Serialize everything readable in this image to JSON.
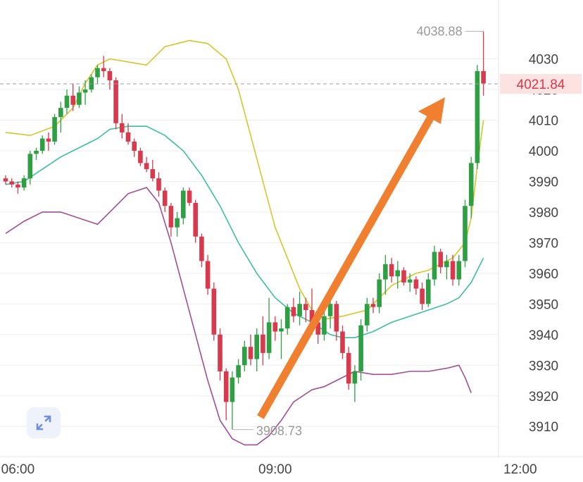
{
  "chart_data": {
    "type": "candlestick",
    "ylim": [
      3902,
      4046
    ],
    "y_ticks": [
      3910,
      3920,
      3930,
      3940,
      3950,
      3960,
      3970,
      3980,
      3990,
      4000,
      4010,
      4020,
      4030
    ],
    "x_ticks": [
      {
        "label": "06:00",
        "index": 2
      },
      {
        "label": "09:00",
        "index": 44
      },
      {
        "label": "12:00",
        "index": 84
      }
    ],
    "grid": true,
    "current_price": 4021.84,
    "current_price_label": "4021.84",
    "high_label": "4038.88",
    "low_label": "3908.73",
    "colors": {
      "up": "#2ea043",
      "down": "#d8394c",
      "upper_band": "#d4c62a",
      "middle_band": "#3cbf9d",
      "lower_band": "#a04e96",
      "arrow": "#f08030",
      "price_line": "#9e9e9e",
      "price_label_bg": "#fde2e2",
      "price_label_text": "#d8394c"
    },
    "candles": [
      [
        3991,
        3992,
        3989,
        3990
      ],
      [
        3990,
        3991,
        3988,
        3989
      ],
      [
        3989,
        3990,
        3986,
        3988
      ],
      [
        3988,
        3992,
        3987,
        3991
      ],
      [
        3991,
        4000,
        3989,
        3999
      ],
      [
        3999,
        4001,
        3997,
        4000
      ],
      [
        4000,
        4005,
        3999,
        4004
      ],
      [
        4004,
        4006,
        4000,
        4003
      ],
      [
        4003,
        4012,
        4002,
        4011
      ],
      [
        4011,
        4016,
        4006,
        4014
      ],
      [
        4014,
        4020,
        4012,
        4018
      ],
      [
        4018,
        4022,
        4013,
        4015
      ],
      [
        4015,
        4021,
        4014,
        4019
      ],
      [
        4019,
        4023,
        4015,
        4020
      ],
      [
        4020,
        4025,
        4019,
        4024
      ],
      [
        4024,
        4028,
        4022,
        4027
      ],
      [
        4027,
        4031,
        4024,
        4026
      ],
      [
        4026,
        4027,
        4020,
        4023
      ],
      [
        4023,
        4024,
        4007,
        4009
      ],
      [
        4009,
        4012,
        4004,
        4006
      ],
      [
        4006,
        4009,
        4002,
        4003
      ],
      [
        4003,
        4004,
        3998,
        4000
      ],
      [
        4000,
        4001,
        3995,
        3996
      ],
      [
        3996,
        3998,
        3993,
        3994
      ],
      [
        3994,
        3997,
        3990,
        3991
      ],
      [
        3991,
        3993,
        3985,
        3987
      ],
      [
        3987,
        3988,
        3980,
        3982
      ],
      [
        3982,
        3983,
        3972,
        3975
      ],
      [
        3975,
        3980,
        3972,
        3978
      ],
      [
        3978,
        3988,
        3976,
        3987
      ],
      [
        3987,
        3988,
        3982,
        3983
      ],
      [
        3983,
        3984,
        3970,
        3972
      ],
      [
        3972,
        3973,
        3962,
        3964
      ],
      [
        3964,
        3966,
        3953,
        3955
      ],
      [
        3955,
        3957,
        3938,
        3940
      ],
      [
        3940,
        3942,
        3925,
        3928
      ],
      [
        3928,
        3929,
        3912,
        3918
      ],
      [
        3918,
        3928,
        3909,
        3926
      ],
      [
        3926,
        3932,
        3924,
        3930
      ],
      [
        3930,
        3938,
        3928,
        3936
      ],
      [
        3936,
        3940,
        3930,
        3932
      ],
      [
        3932,
        3942,
        3928,
        3940
      ],
      [
        3940,
        3946,
        3930,
        3934
      ],
      [
        3934,
        3952,
        3932,
        3944
      ],
      [
        3944,
        3946,
        3938,
        3941
      ],
      [
        3941,
        3945,
        3932,
        3942
      ],
      [
        3942,
        3950,
        3940,
        3949
      ],
      [
        3949,
        3952,
        3944,
        3946
      ],
      [
        3946,
        3954,
        3943,
        3950
      ],
      [
        3950,
        3952,
        3944,
        3948
      ],
      [
        3948,
        3955,
        3940,
        3944
      ],
      [
        3944,
        3946,
        3937,
        3940
      ],
      [
        3940,
        3948,
        3938,
        3946
      ],
      [
        3946,
        3952,
        3942,
        3950
      ],
      [
        3950,
        3951,
        3938,
        3941
      ],
      [
        3941,
        3943,
        3932,
        3934
      ],
      [
        3934,
        3936,
        3922,
        3924
      ],
      [
        3924,
        3930,
        3918,
        3928
      ],
      [
        3928,
        3945,
        3925,
        3943
      ],
      [
        3943,
        3952,
        3941,
        3950
      ],
      [
        3950,
        3952,
        3947,
        3949
      ],
      [
        3949,
        3960,
        3947,
        3958
      ],
      [
        3958,
        3966,
        3953,
        3963
      ],
      [
        3963,
        3965,
        3957,
        3959
      ],
      [
        3959,
        3964,
        3955,
        3961
      ],
      [
        3961,
        3962,
        3956,
        3957
      ],
      [
        3957,
        3960,
        3954,
        3958
      ],
      [
        3958,
        3959,
        3953,
        3955
      ],
      [
        3955,
        3957,
        3948,
        3950
      ],
      [
        3950,
        3960,
        3949,
        3958
      ],
      [
        3958,
        3969,
        3956,
        3967
      ],
      [
        3967,
        3968,
        3960,
        3962
      ],
      [
        3962,
        3966,
        3958,
        3964
      ],
      [
        3964,
        3966,
        3956,
        3958
      ],
      [
        3958,
        3966,
        3956,
        3964
      ],
      [
        3964,
        3984,
        3962,
        3982
      ],
      [
        3982,
        3998,
        3978,
        3996
      ],
      [
        3996,
        4028,
        3994,
        4026
      ],
      [
        4026,
        4039,
        4018,
        4022
      ]
    ],
    "bollinger": {
      "upper": [
        [
          0,
          4006
        ],
        [
          4,
          4005
        ],
        [
          8,
          4008
        ],
        [
          11,
          4014
        ],
        [
          13,
          4022
        ],
        [
          15,
          4028
        ],
        [
          17,
          4030
        ],
        [
          20,
          4029
        ],
        [
          23,
          4028
        ],
        [
          26,
          4034
        ],
        [
          30,
          4036
        ],
        [
          33,
          4035
        ],
        [
          36,
          4030
        ],
        [
          38,
          4020
        ],
        [
          40,
          4005
        ],
        [
          42,
          3990
        ],
        [
          44,
          3975
        ],
        [
          46,
          3965
        ],
        [
          48,
          3955
        ],
        [
          50,
          3948
        ],
        [
          52,
          3945
        ],
        [
          55,
          3946
        ],
        [
          57,
          3947
        ],
        [
          59,
          3948
        ],
        [
          61,
          3952
        ],
        [
          63,
          3956
        ],
        [
          65,
          3958
        ],
        [
          67,
          3960
        ],
        [
          69,
          3961
        ],
        [
          71,
          3963
        ],
        [
          73,
          3965
        ],
        [
          75,
          3970
        ],
        [
          76,
          3978
        ],
        [
          77,
          3995
        ],
        [
          78,
          4010
        ]
      ],
      "middle": [
        [
          0,
          3989
        ],
        [
          3,
          3990
        ],
        [
          6,
          3994
        ],
        [
          9,
          3998
        ],
        [
          12,
          4001
        ],
        [
          15,
          4004
        ],
        [
          17,
          4007
        ],
        [
          20,
          4008
        ],
        [
          23,
          4008
        ],
        [
          26,
          4005
        ],
        [
          29,
          4000
        ],
        [
          32,
          3992
        ],
        [
          35,
          3982
        ],
        [
          38,
          3970
        ],
        [
          41,
          3960
        ],
        [
          44,
          3952
        ],
        [
          47,
          3947
        ],
        [
          50,
          3944
        ],
        [
          53,
          3940
        ],
        [
          55,
          3939
        ],
        [
          57,
          3939
        ],
        [
          60,
          3941
        ],
        [
          63,
          3944
        ],
        [
          66,
          3946
        ],
        [
          69,
          3948
        ],
        [
          72,
          3950
        ],
        [
          74,
          3952
        ],
        [
          76,
          3957
        ],
        [
          78,
          3965
        ]
      ],
      "lower": [
        [
          0,
          3973
        ],
        [
          3,
          3977
        ],
        [
          6,
          3980
        ],
        [
          9,
          3980
        ],
        [
          12,
          3978
        ],
        [
          15,
          3976
        ],
        [
          17,
          3980
        ],
        [
          20,
          3986
        ],
        [
          23,
          3988
        ],
        [
          25,
          3983
        ],
        [
          27,
          3970
        ],
        [
          29,
          3955
        ],
        [
          31,
          3940
        ],
        [
          33,
          3925
        ],
        [
          35,
          3912
        ],
        [
          37,
          3906
        ],
        [
          39,
          3904
        ],
        [
          41,
          3904
        ],
        [
          43,
          3907
        ],
        [
          45,
          3912
        ],
        [
          47,
          3918
        ],
        [
          50,
          3922
        ],
        [
          52,
          3923
        ],
        [
          54,
          3925
        ],
        [
          57,
          3928
        ],
        [
          60,
          3927
        ],
        [
          63,
          3927
        ],
        [
          66,
          3928
        ],
        [
          69,
          3928
        ],
        [
          72,
          3929
        ],
        [
          74,
          3930
        ],
        [
          75,
          3926
        ],
        [
          76,
          3921
        ]
      ]
    }
  }
}
